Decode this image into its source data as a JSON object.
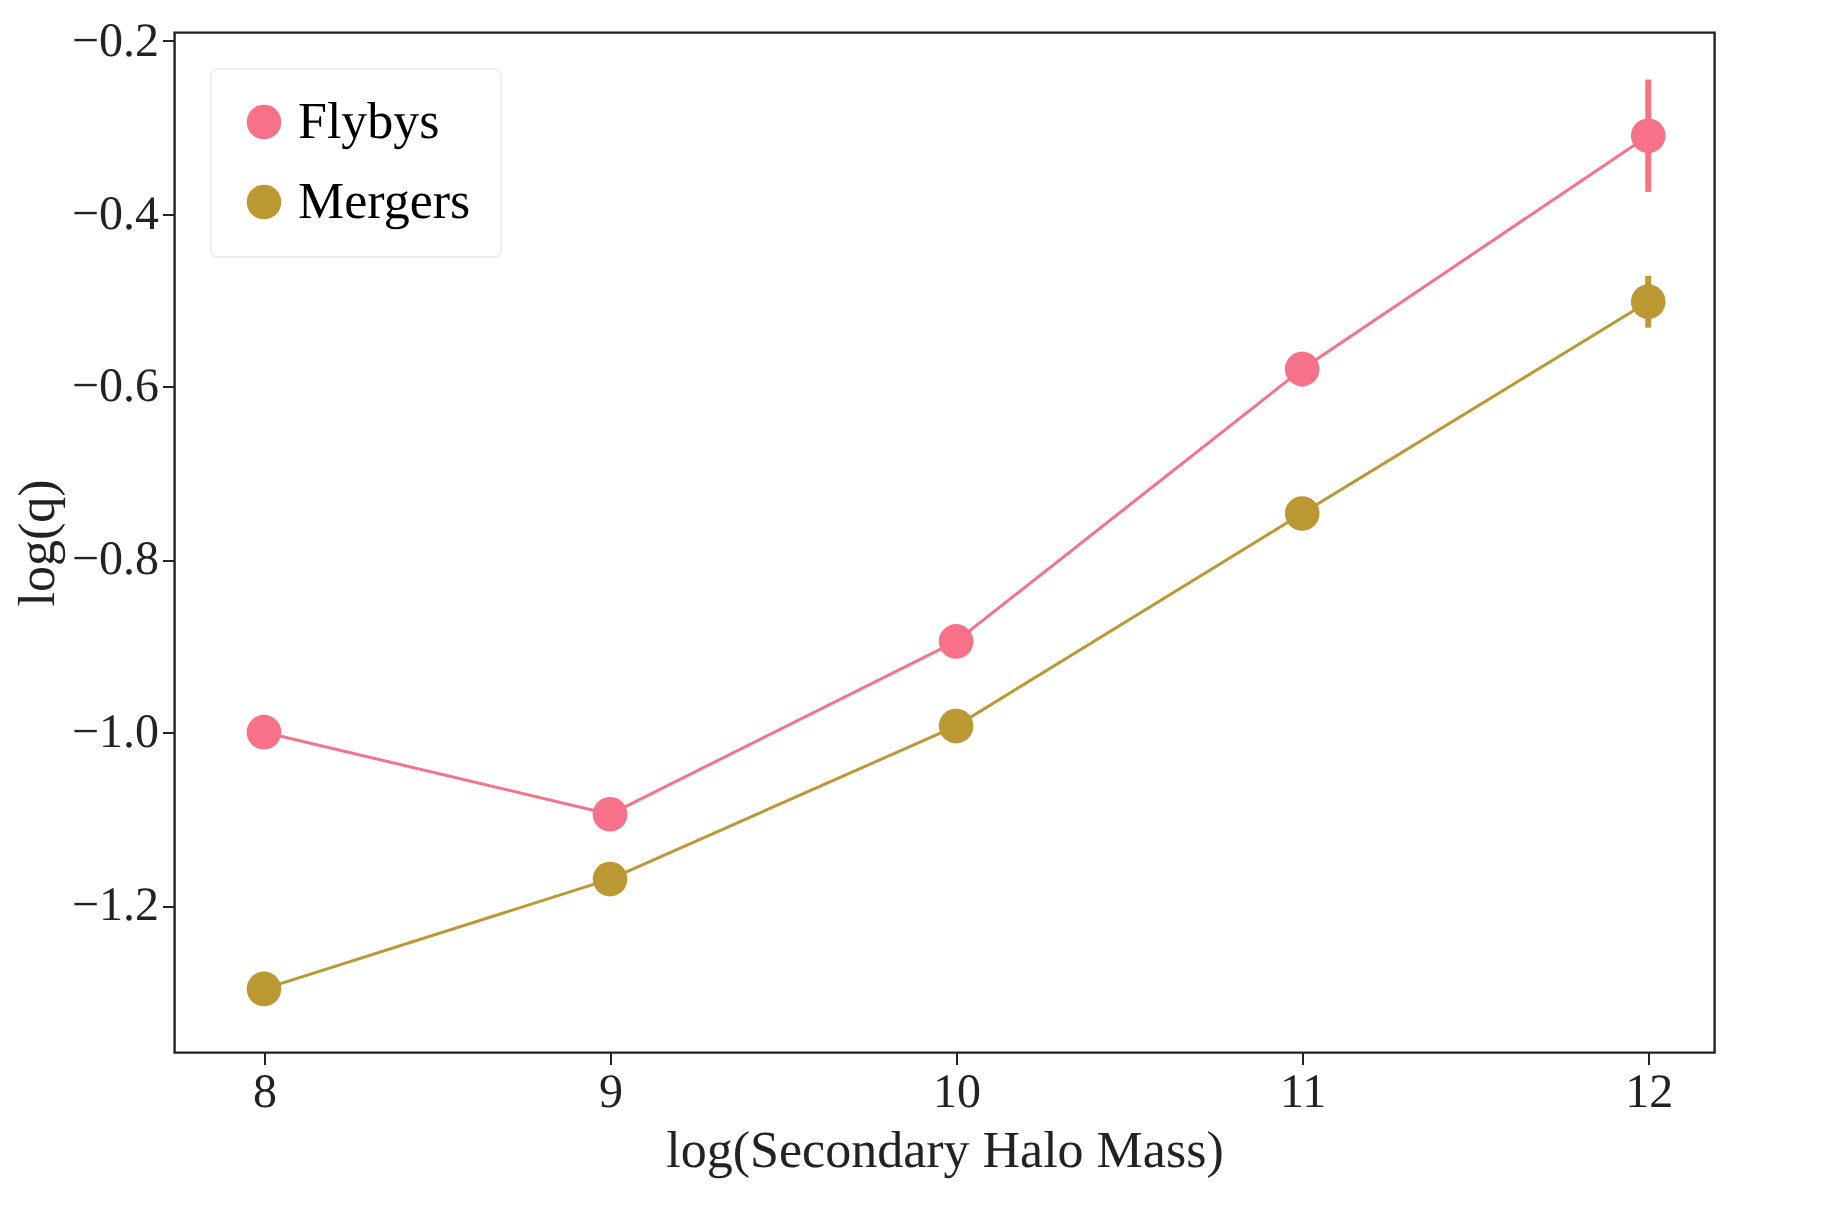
{
  "chart_data": {
    "type": "line",
    "xlabel": "log(Secondary Halo Mass)",
    "ylabel": "log(q)",
    "x": [
      8,
      9,
      10,
      11,
      12
    ],
    "series": [
      {
        "name": "Flybys",
        "color": "#f77189",
        "values": [
          -1.0,
          -1.095,
          -0.895,
          -0.58,
          -0.31
        ],
        "errors": [
          null,
          null,
          null,
          0.02,
          0.065
        ]
      },
      {
        "name": "Mergers",
        "color": "#bb9832",
        "values": [
          -1.297,
          -1.17,
          -0.993,
          -0.747,
          -0.502
        ],
        "errors": [
          null,
          null,
          null,
          null,
          0.03
        ]
      }
    ],
    "xlim": [
      7.74,
      12.19
    ],
    "xticks": [
      8,
      9,
      10,
      11,
      12
    ],
    "ylim": [
      -1.37,
      -0.19
    ],
    "yticks": [
      {
        "value": -1.2,
        "label": "−1.2"
      },
      {
        "value": -1.0,
        "label": "−1.0"
      },
      {
        "value": -0.8,
        "label": "−0.8"
      },
      {
        "value": -0.6,
        "label": "−0.6"
      },
      {
        "value": -0.4,
        "label": "−0.4"
      },
      {
        "value": -0.2,
        "label": "−0.2"
      }
    ],
    "marker": "circle",
    "line_style": "solid",
    "grid": false,
    "legend": "top left"
  }
}
